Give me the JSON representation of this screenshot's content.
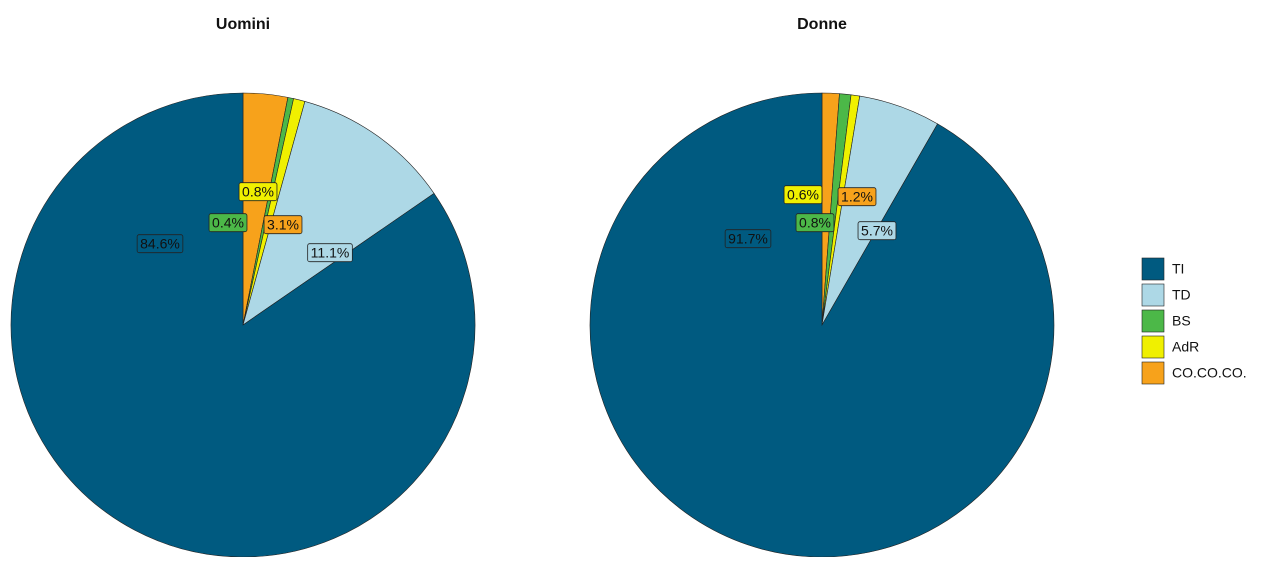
{
  "chart_data": [
    {
      "type": "pie",
      "title": "Uomini",
      "categories": [
        "TI",
        "TD",
        "BS",
        "AdR",
        "CO.CO.CO."
      ],
      "values": [
        84.6,
        11.1,
        0.4,
        0.8,
        3.1
      ],
      "value_labels": [
        "84.6%",
        "11.1%",
        "0.4%",
        "0.8%",
        "3.1%"
      ],
      "colors": [
        "#005a80",
        "#add8e6",
        "#4cb848",
        "#f0f000",
        "#f7a21b"
      ]
    },
    {
      "type": "pie",
      "title": "Donne",
      "categories": [
        "TI",
        "TD",
        "BS",
        "AdR",
        "CO.CO.CO."
      ],
      "values": [
        91.7,
        5.7,
        0.8,
        0.6,
        1.2
      ],
      "value_labels": [
        "91.7%",
        "5.7%",
        "0.8%",
        "0.6%",
        "1.2%"
      ],
      "colors": [
        "#005a80",
        "#add8e6",
        "#4cb848",
        "#f0f000",
        "#f7a21b"
      ]
    }
  ]
}
